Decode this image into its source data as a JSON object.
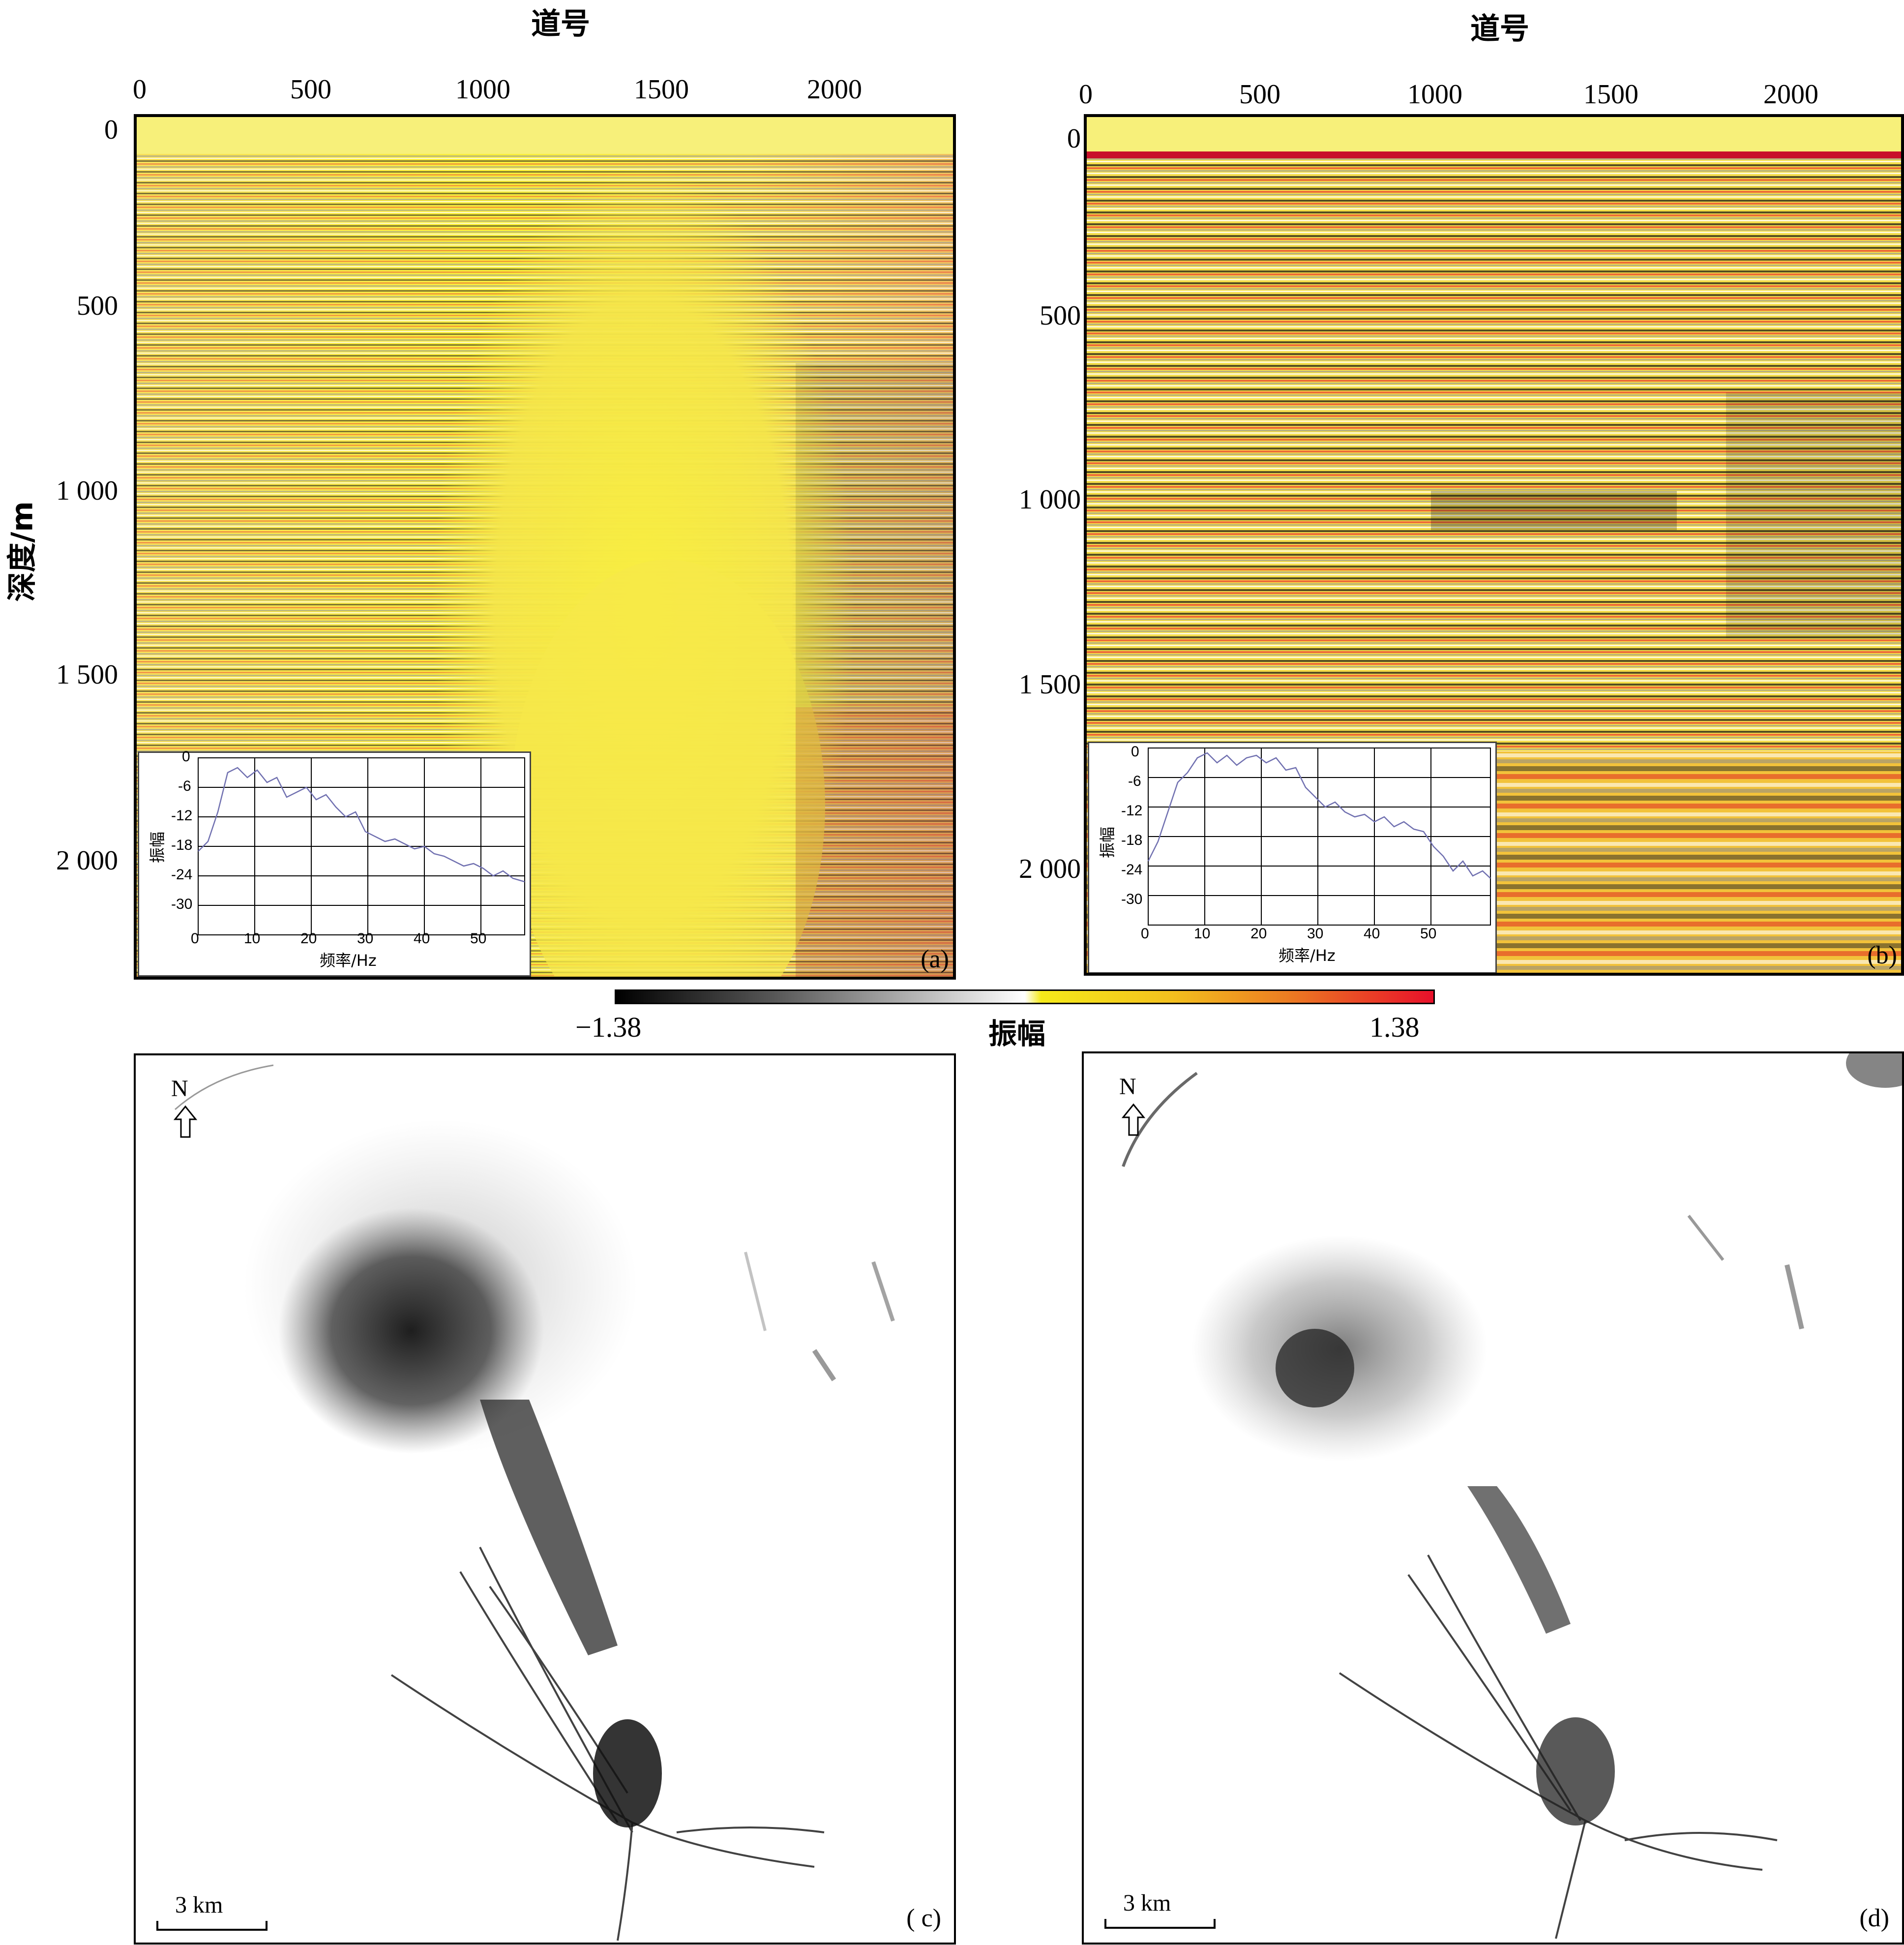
{
  "top_left": {
    "x_title": "道号",
    "y_title": "深度/m",
    "x_ticks": [
      "0",
      "500",
      "1000",
      "1500",
      "2000"
    ],
    "y_ticks": [
      "0",
      "500",
      "1 000",
      "1 500",
      "2 000"
    ],
    "panel_label": "(a)",
    "inset": {
      "y_title": "振幅",
      "x_title": "频率/Hz",
      "y_ticks": [
        "0",
        "-6",
        "-12",
        "-18",
        "-24",
        "-30"
      ],
      "x_ticks": [
        "0",
        "10",
        "20",
        "30",
        "40",
        "50"
      ]
    }
  },
  "top_right": {
    "x_title": "道号",
    "x_ticks": [
      "0",
      "500",
      "1000",
      "1500",
      "2000"
    ],
    "y_ticks": [
      "0",
      "500",
      "1 000",
      "1 500",
      "2 000"
    ],
    "panel_label": "(b)",
    "inset": {
      "y_title": "振幅",
      "x_title": "频率/Hz",
      "y_ticks": [
        "0",
        "-6",
        "-12",
        "-18",
        "-24",
        "-30"
      ],
      "x_ticks": [
        "0",
        "10",
        "20",
        "30",
        "40",
        "50"
      ]
    }
  },
  "colorbar": {
    "min_label": "−1.38",
    "max_label": "1.38",
    "title": "振幅",
    "colors": [
      "#000000",
      "#8a8a8a",
      "#ffffff",
      "#f5ea1a",
      "#f0a020",
      "#e8102a"
    ]
  },
  "bottom_left": {
    "north": "N",
    "scale": "3 km",
    "panel_label": "( c)"
  },
  "bottom_right": {
    "north": "N",
    "scale": "3 km",
    "panel_label": "(d)"
  }
}
